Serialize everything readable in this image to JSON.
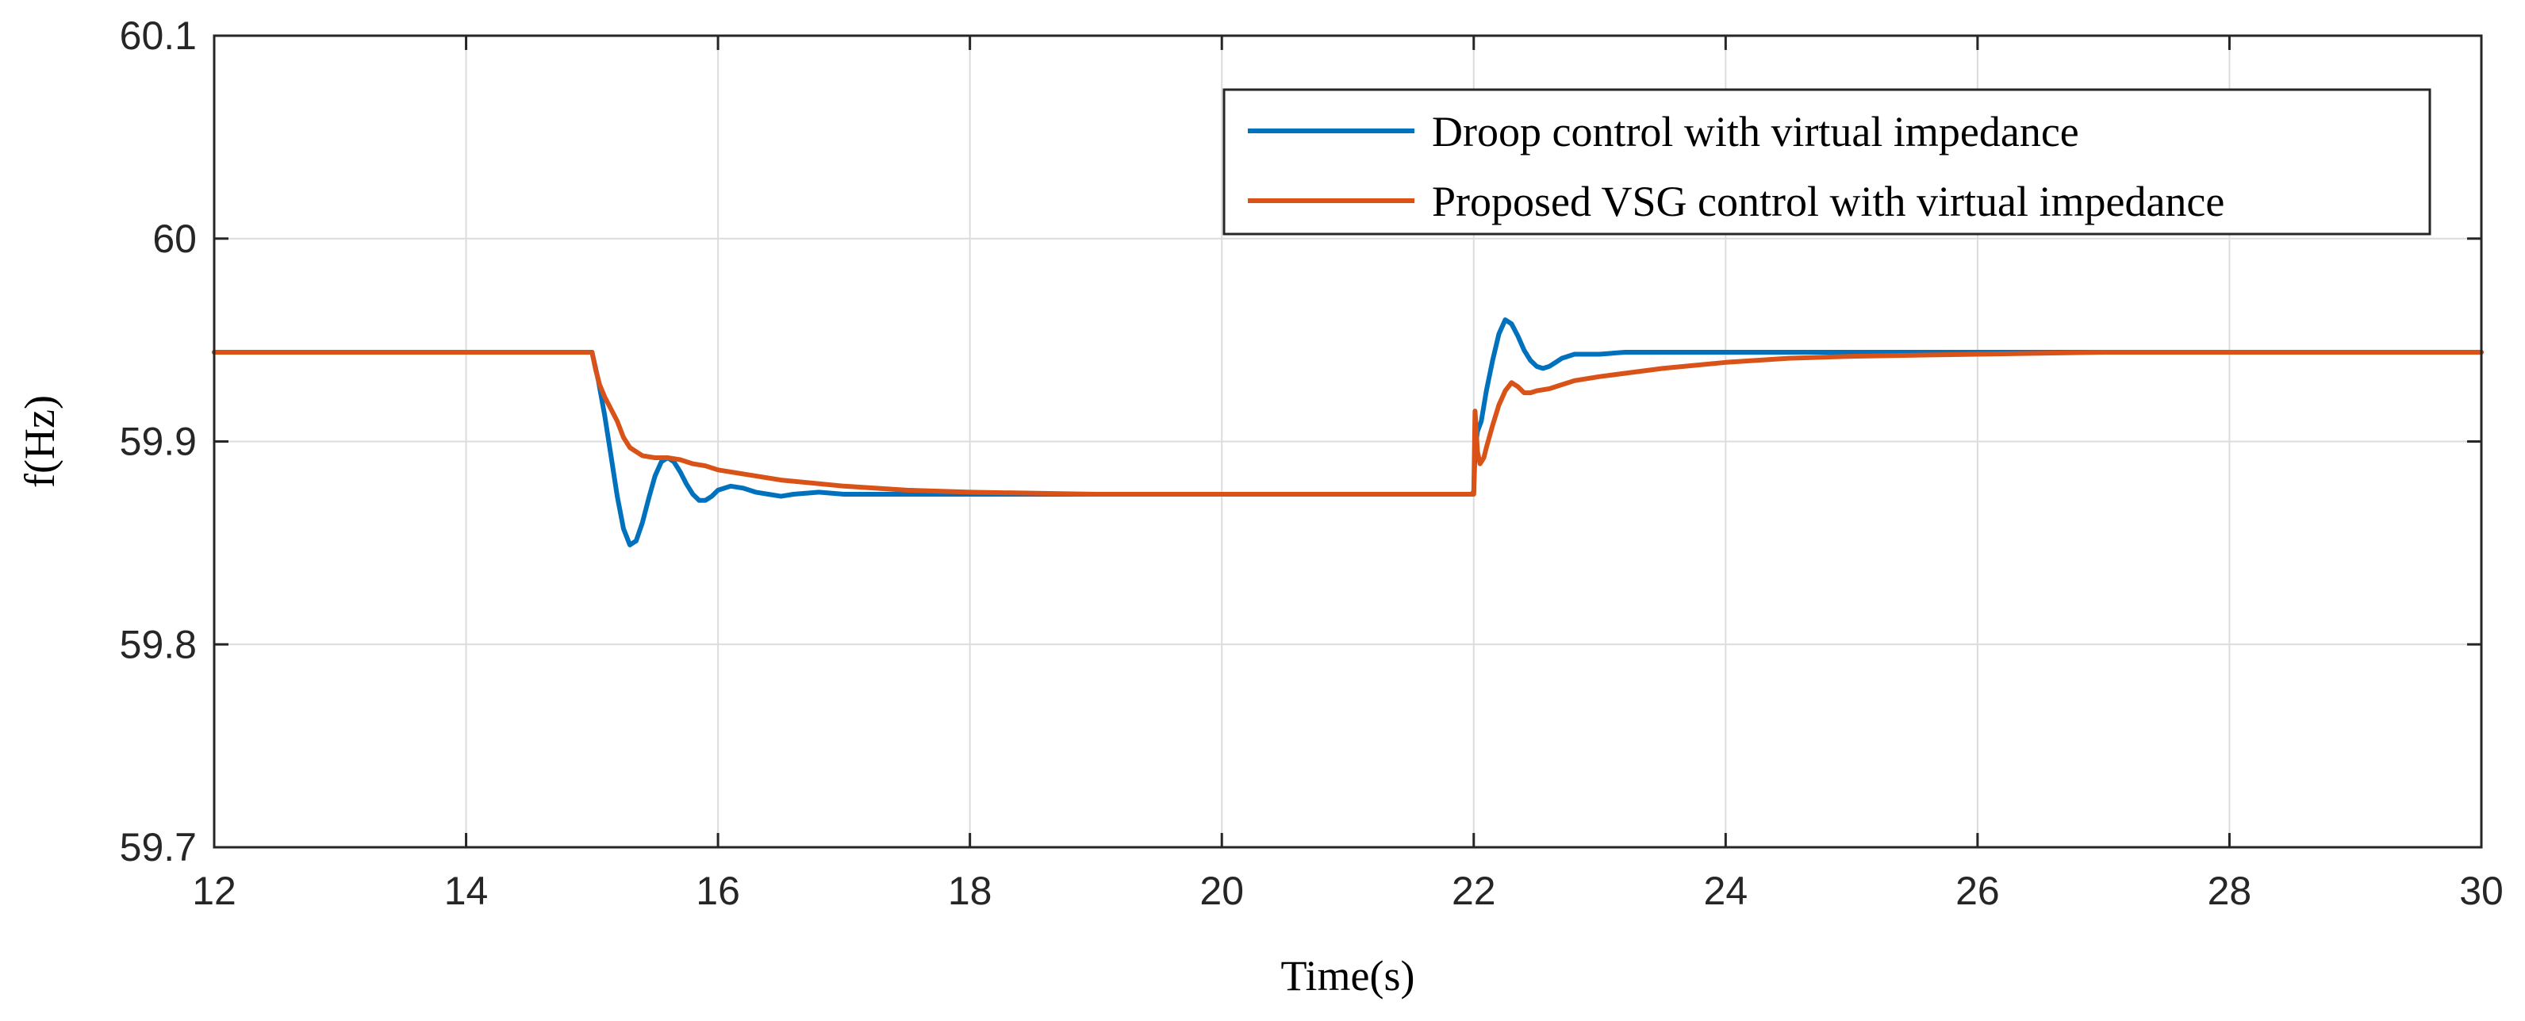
{
  "chart_data": {
    "type": "line",
    "title": "",
    "xlabel": "Time(s)",
    "ylabel": "f(Hz)",
    "xlim": [
      12,
      30
    ],
    "ylim": [
      59.7,
      60.1
    ],
    "xticks": [
      12,
      14,
      16,
      18,
      20,
      22,
      24,
      26,
      28,
      30
    ],
    "yticks": [
      59.7,
      59.8,
      59.9,
      60,
      60.1
    ],
    "xtick_labels": [
      "12",
      "14",
      "16",
      "18",
      "20",
      "22",
      "24",
      "26",
      "28",
      "30"
    ],
    "ytick_labels": [
      "59.7",
      "59.8",
      "59.9",
      "60",
      "60.1"
    ],
    "grid": true,
    "legend_position": "top-right",
    "series": [
      {
        "name": "Droop control with virtual impedance",
        "color": "#0072BD",
        "x": [
          12,
          15.0,
          15.05,
          15.1,
          15.15,
          15.2,
          15.25,
          15.3,
          15.35,
          15.4,
          15.45,
          15.5,
          15.55,
          15.6,
          15.65,
          15.7,
          15.75,
          15.8,
          15.85,
          15.9,
          15.95,
          16.0,
          16.1,
          16.2,
          16.3,
          16.4,
          16.5,
          16.6,
          16.8,
          17.0,
          17.5,
          18.0,
          19.0,
          20.0,
          21.0,
          21.98,
          22.0,
          22.01,
          22.03,
          22.06,
          22.1,
          22.15,
          22.2,
          22.25,
          22.3,
          22.35,
          22.4,
          22.45,
          22.5,
          22.55,
          22.6,
          22.65,
          22.7,
          22.8,
          22.9,
          23.0,
          23.2,
          23.5,
          24.0,
          25.0,
          26.0,
          28.0,
          30.0
        ],
        "y": [
          59.944,
          59.944,
          59.93,
          59.913,
          59.893,
          59.873,
          59.857,
          59.849,
          59.851,
          59.86,
          59.872,
          59.883,
          59.89,
          59.892,
          59.89,
          59.885,
          59.879,
          59.874,
          59.871,
          59.871,
          59.873,
          59.876,
          59.878,
          59.877,
          59.875,
          59.874,
          59.873,
          59.874,
          59.875,
          59.874,
          59.874,
          59.874,
          59.874,
          59.874,
          59.874,
          59.874,
          59.875,
          59.895,
          59.905,
          59.91,
          59.925,
          59.94,
          59.953,
          59.96,
          59.958,
          59.952,
          59.945,
          59.94,
          59.937,
          59.936,
          59.937,
          59.939,
          59.941,
          59.943,
          59.943,
          59.943,
          59.944,
          59.944,
          59.944,
          59.944,
          59.944,
          59.944,
          59.944
        ]
      },
      {
        "name": "Proposed VSG control with virtual impedance",
        "color": "#D95319",
        "x": [
          12,
          15.0,
          15.03,
          15.06,
          15.1,
          15.15,
          15.2,
          15.25,
          15.3,
          15.35,
          15.4,
          15.5,
          15.6,
          15.7,
          15.8,
          15.9,
          16.0,
          16.2,
          16.5,
          17.0,
          17.5,
          18.0,
          19.0,
          20.0,
          21.0,
          21.98,
          22.0,
          22.01,
          22.02,
          22.03,
          22.05,
          22.08,
          22.1,
          22.15,
          22.2,
          22.25,
          22.3,
          22.35,
          22.4,
          22.45,
          22.5,
          22.6,
          22.7,
          22.8,
          23.0,
          23.5,
          24.0,
          24.5,
          25.0,
          26.0,
          27.0,
          28.0,
          30.0
        ],
        "y": [
          59.944,
          59.944,
          59.935,
          59.928,
          59.922,
          59.916,
          59.91,
          59.902,
          59.897,
          59.895,
          59.893,
          59.892,
          59.892,
          59.891,
          59.889,
          59.888,
          59.886,
          59.884,
          59.881,
          59.878,
          59.876,
          59.875,
          59.874,
          59.874,
          59.874,
          59.874,
          59.874,
          59.915,
          59.905,
          59.895,
          59.889,
          59.892,
          59.897,
          59.908,
          59.918,
          59.925,
          59.929,
          59.927,
          59.924,
          59.924,
          59.925,
          59.926,
          59.928,
          59.93,
          59.932,
          59.936,
          59.939,
          59.941,
          59.942,
          59.943,
          59.944,
          59.944,
          59.944
        ]
      }
    ]
  }
}
